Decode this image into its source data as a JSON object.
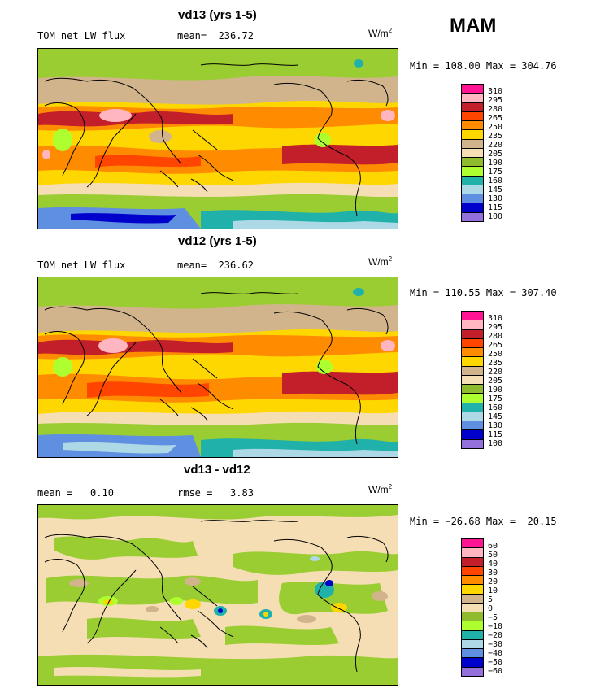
{
  "season": "MAM",
  "panels": [
    {
      "title": "vd13 (yrs 1-5)",
      "left_label": "TOM net LW flux",
      "mid_label": "mean=  236.72",
      "units": "W/m",
      "units_exp": "2",
      "minmax": "Min = 108.00 Max = 304.76",
      "colorbar_labels": [
        "310",
        "295",
        "280",
        "265",
        "250",
        "235",
        "220",
        "205",
        "190",
        "175",
        "160",
        "145",
        "130",
        "115",
        "100"
      ],
      "kind": "abs"
    },
    {
      "title": "vd12 (yrs 1-5)",
      "left_label": "TOM net LW flux",
      "mid_label": "mean=  236.62",
      "units": "W/m",
      "units_exp": "2",
      "minmax": "Min = 110.55 Max = 307.40",
      "colorbar_labels": [
        "310",
        "295",
        "280",
        "265",
        "250",
        "235",
        "220",
        "205",
        "190",
        "175",
        "160",
        "145",
        "130",
        "115",
        "100"
      ],
      "kind": "abs"
    },
    {
      "title": "vd13 - vd12",
      "left_label": "mean =   0.10",
      "mid_label": "rmse =   3.83",
      "units": "W/m",
      "units_exp": "2",
      "minmax": "Min = −26.68 Max =  20.15",
      "colorbar_labels": [
        "60",
        "50",
        "40",
        "30",
        "20",
        "10",
        "5",
        "0",
        "−5",
        "−10",
        "−20",
        "−30",
        "−40",
        "−50",
        "−60"
      ],
      "kind": "diff"
    }
  ],
  "colors": {
    "palette": [
      "#ff1493",
      "#ffb6c1",
      "#c31f2a",
      "#ff4500",
      "#ff8c00",
      "#ffd700",
      "#f5f020",
      "#d2b48c",
      "#f5deb3",
      "#8fbc2f",
      "#adff2f",
      "#20b2aa",
      "#add8e6",
      "#5f8fe0",
      "#0000cd",
      "#9370db"
    ]
  }
}
